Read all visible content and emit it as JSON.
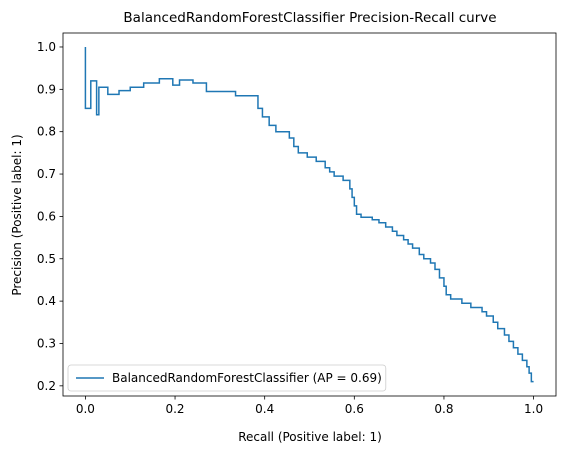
{
  "chart_data": {
    "type": "line",
    "drawstyle": "steps-pre",
    "title": "BalancedRandomForestClassifier Precision-Recall curve",
    "xlabel": "Recall (Positive label: 1)",
    "ylabel": "Precision (Positive label: 1)",
    "xlim": [
      -0.05,
      1.05
    ],
    "ylim": [
      0.176,
      1.033
    ],
    "xticks": [
      {
        "value": 0,
        "label": "0.0"
      },
      0.2,
      0.4,
      0.6,
      0.8,
      {
        "value": 1,
        "label": "1.0"
      }
    ],
    "yticks": [
      0.2,
      0.3,
      0.4,
      0.5,
      0.6,
      0.7,
      0.8,
      0.9,
      {
        "value": 1,
        "label": "1.0"
      }
    ],
    "legend": "lower left",
    "series": [
      {
        "name": "BalancedRandomForestClassifier (AP = 0.69)",
        "color": "#1f77b4",
        "x": [
          0,
          0,
          0.012,
          0.025,
          0.03,
          0.05,
          0.075,
          0.1,
          0.13,
          0.165,
          0.195,
          0.21,
          0.24,
          0.27,
          0.335,
          0.385,
          0.395,
          0.41,
          0.425,
          0.455,
          0.465,
          0.475,
          0.495,
          0.515,
          0.535,
          0.545,
          0.555,
          0.575,
          0.59,
          0.595,
          0.6,
          0.605,
          0.615,
          0.64,
          0.655,
          0.67,
          0.685,
          0.695,
          0.71,
          0.72,
          0.73,
          0.745,
          0.755,
          0.77,
          0.78,
          0.79,
          0.8,
          0.805,
          0.815,
          0.84,
          0.86,
          0.885,
          0.895,
          0.91,
          0.92,
          0.935,
          0.945,
          0.955,
          0.965,
          0.975,
          0.985,
          0.99,
          0.995,
          1.0
        ],
        "values": [
          1.0,
          0.855,
          0.855,
          0.92,
          0.84,
          0.905,
          0.888,
          0.897,
          0.905,
          0.915,
          0.925,
          0.91,
          0.922,
          0.915,
          0.895,
          0.885,
          0.855,
          0.835,
          0.815,
          0.8,
          0.785,
          0.765,
          0.75,
          0.74,
          0.73,
          0.715,
          0.705,
          0.695,
          0.685,
          0.665,
          0.645,
          0.625,
          0.605,
          0.598,
          0.592,
          0.585,
          0.575,
          0.565,
          0.555,
          0.545,
          0.535,
          0.525,
          0.51,
          0.5,
          0.49,
          0.475,
          0.455,
          0.435,
          0.415,
          0.405,
          0.395,
          0.385,
          0.375,
          0.365,
          0.35,
          0.335,
          0.32,
          0.305,
          0.29,
          0.275,
          0.26,
          0.245,
          0.23,
          0.21
        ]
      }
    ]
  }
}
